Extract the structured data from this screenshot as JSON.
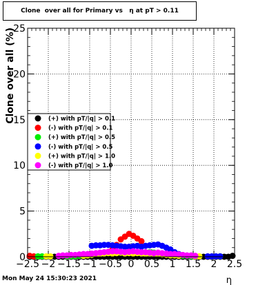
{
  "chart_data": {
    "type": "scatter",
    "title": "Clone  over all for Primary vs   η at pT > 0.11",
    "xlabel": "η",
    "ylabel": "Clone  over all (%)",
    "xlim": [
      -2.5,
      2.5
    ],
    "ylim": [
      0,
      25
    ],
    "x_ticks": [
      "−2.5",
      "−2",
      "−1.5",
      "−1",
      "−0.5",
      "0",
      "0.5",
      "1",
      "1.5",
      "2",
      "2.5"
    ],
    "x_tick_values": [
      -2.5,
      -2,
      -1.5,
      -1,
      -0.5,
      0,
      0.5,
      1,
      1.5,
      2,
      2.5
    ],
    "y_ticks": [
      "0",
      "5",
      "10",
      "15",
      "20",
      "25"
    ],
    "y_tick_values": [
      0,
      5,
      10,
      15,
      20,
      25
    ],
    "grid": true,
    "legend_position": "middle-left",
    "series": [
      {
        "name": "(+) with pT/|q| > 0.1",
        "color": "#000000",
        "x": [
          -2.45,
          -2.35,
          -2.25,
          -2.15,
          -2.05,
          -1.95,
          -1.85,
          -1.75,
          -1.65,
          -1.55,
          -1.45,
          -1.35,
          -1.25,
          -1.15,
          -1.05,
          -0.95,
          -0.85,
          -0.75,
          -0.65,
          -0.55,
          -0.45,
          -0.35,
          -0.25,
          -0.15,
          -0.05,
          0.05,
          0.15,
          0.25,
          0.35,
          0.45,
          0.55,
          0.65,
          0.75,
          0.85,
          0.95,
          1.05,
          1.15,
          1.25,
          1.35,
          1.45,
          1.55,
          1.65,
          1.75,
          1.85,
          1.95,
          2.05,
          2.15,
          2.25,
          2.35,
          2.45
        ],
        "y": [
          0,
          0,
          0,
          0,
          0,
          0,
          0,
          0,
          0,
          0,
          0,
          0,
          0,
          0,
          0,
          0,
          0,
          0,
          0,
          0,
          0,
          0,
          0,
          0,
          0,
          0,
          0,
          0,
          0,
          0,
          0,
          0,
          0,
          0,
          0,
          0,
          0,
          0,
          0,
          0,
          0,
          0,
          0,
          0,
          0,
          0,
          0,
          0,
          0,
          0.1
        ]
      },
      {
        "name": "(-) with pT/|q| > 0.1",
        "color": "#ff0000",
        "x": [
          -2.45,
          -2.35,
          -0.45,
          -0.35,
          -0.25,
          -0.15,
          -0.05,
          0.05,
          0.15,
          0.25
        ],
        "y": [
          0.1,
          0.05,
          0.8,
          1.3,
          1.9,
          2.2,
          2.5,
          2.3,
          2.0,
          1.7
        ]
      },
      {
        "name": "(+) with pT/|q| > 0.5",
        "color": "#00ee00",
        "x": [
          -2.25,
          -2.15,
          -1.55,
          -1.45,
          -1.35,
          -1.25,
          -1.15,
          -1.05,
          -0.95,
          -0.85,
          -0.75,
          -0.65,
          -0.55,
          -0.45,
          -0.35,
          -0.25,
          -0.15,
          -0.05,
          0.05,
          0.15,
          0.25,
          0.35,
          0.45,
          0.55,
          0.65,
          0.75,
          0.85,
          0.95,
          1.05,
          1.15,
          1.25,
          1.35,
          1.45,
          1.55,
          2.15
        ],
        "y": [
          0.05,
          0.05,
          0.05,
          0.05,
          0.05,
          0.1,
          0.1,
          0.15,
          0.2,
          0.3,
          0.35,
          0.4,
          0.45,
          0.5,
          0.5,
          0.5,
          0.5,
          0.5,
          0.5,
          0.5,
          0.5,
          0.5,
          0.5,
          0.45,
          0.4,
          0.35,
          0.3,
          0.25,
          0.2,
          0.15,
          0.1,
          0.1,
          0.05,
          0.05,
          0.05
        ]
      },
      {
        "name": "(-) with pT/|q| > 0.5",
        "color": "#0000ff",
        "x": [
          -0.95,
          -0.85,
          -0.75,
          -0.65,
          -0.55,
          -0.45,
          -0.35,
          -0.25,
          -0.15,
          -0.05,
          0.05,
          0.15,
          0.25,
          0.35,
          0.45,
          0.55,
          0.65,
          0.75,
          0.85,
          0.95,
          1.05,
          1.15,
          1.85,
          1.95,
          2.05,
          2.15
        ],
        "y": [
          1.2,
          1.25,
          1.25,
          1.3,
          1.3,
          1.25,
          1.2,
          1.15,
          1.1,
          1.1,
          1.15,
          1.2,
          1.1,
          1.2,
          1.25,
          1.3,
          1.35,
          1.2,
          1.0,
          0.8,
          0.5,
          0.3,
          0.05,
          0.05,
          0.05,
          0.05
        ]
      },
      {
        "name": "(+) with pT/|q| > 1.0",
        "color": "#ffff00",
        "x": [
          -2.05,
          -1.95,
          -1.15,
          -1.05,
          -0.95,
          -0.85,
          -0.75,
          -0.65,
          -0.55,
          -0.45,
          -0.35,
          -0.25,
          -0.15,
          -0.05,
          0.05,
          0.15,
          0.25,
          0.35,
          0.45,
          0.55,
          0.65,
          0.75,
          0.85,
          0.95,
          1.05,
          1.15,
          1.55,
          1.65
        ],
        "y": [
          0.05,
          0.05,
          0.1,
          0.15,
          0.2,
          0.3,
          0.3,
          0.35,
          0.4,
          0.35,
          0.4,
          0.45,
          0.35,
          0.4,
          0.35,
          0.4,
          0.35,
          0.3,
          0.35,
          0.3,
          0.3,
          0.25,
          0.2,
          0.15,
          0.15,
          0.1,
          0.05,
          0.05
        ]
      },
      {
        "name": "(-) with pT/|q| > 1.0",
        "color": "#ff00ff",
        "x": [
          -1.75,
          -1.65,
          -1.55,
          -1.45,
          -1.35,
          -1.25,
          -1.15,
          -1.05,
          -0.95,
          -0.85,
          -0.75,
          -0.65,
          -0.55,
          -0.45,
          -0.35,
          -0.25,
          -0.15,
          -0.05,
          0.05,
          0.15,
          0.25,
          0.35,
          0.45,
          0.55,
          0.65,
          0.75,
          0.85,
          0.95,
          1.05,
          1.15,
          1.25,
          1.35,
          1.45,
          1.55
        ],
        "y": [
          0.1,
          0.15,
          0.15,
          0.2,
          0.2,
          0.25,
          0.3,
          0.3,
          0.35,
          0.4,
          0.45,
          0.5,
          0.55,
          0.6,
          0.6,
          0.55,
          0.5,
          0.55,
          0.6,
          0.55,
          0.5,
          0.5,
          0.45,
          0.4,
          0.45,
          0.4,
          0.35,
          0.3,
          0.3,
          0.25,
          0.2,
          0.15,
          0.15,
          0.1
        ]
      }
    ]
  },
  "footer": "Mon May 24 15:30:23 2021"
}
